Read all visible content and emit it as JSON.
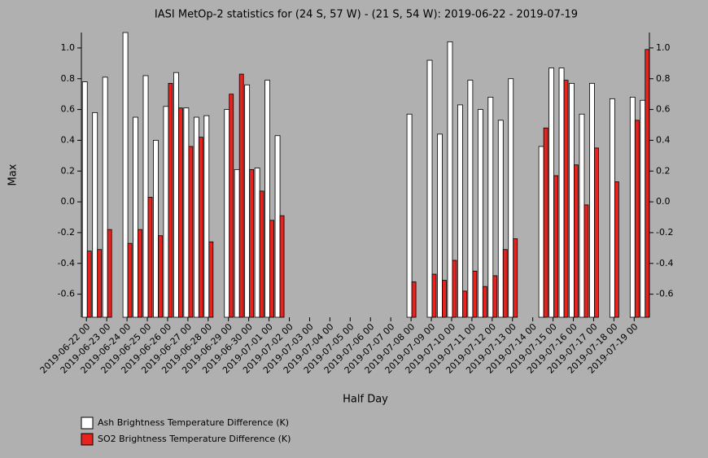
{
  "chart_data": {
    "type": "bar",
    "title": "IASI MetOp-2 statistics for (24 S, 57 W) - (21 S, 54 W): 2019-06-22 - 2019-07-19",
    "x_label": "Half Day",
    "y_label": "Max",
    "categories": [
      "2019-06-22 00",
      null,
      "2019-06-23 00",
      null,
      "2019-06-24 00",
      null,
      "2019-06-25 00",
      null,
      "2019-06-26 00",
      null,
      "2019-06-27 00",
      null,
      "2019-06-28 00",
      null,
      "2019-06-29 00",
      null,
      "2019-06-30 00",
      null,
      "2019-07-01 00",
      null,
      "2019-07-02 00",
      null,
      "2019-07-03 00",
      null,
      "2019-07-04 00",
      null,
      "2019-07-05 00",
      null,
      "2019-07-06 00",
      null,
      "2019-07-07 00",
      null,
      "2019-07-08 00",
      null,
      "2019-07-09 00",
      null,
      "2019-07-10 00",
      null,
      "2019-07-11 00",
      null,
      "2019-07-12 00",
      null,
      "2019-07-13 00",
      null,
      "2019-07-14 00",
      null,
      "2019-07-15 00",
      null,
      "2019-07-16 00",
      null,
      "2019-07-17 00",
      null,
      "2019-07-18 00",
      null,
      "2019-07-19 00",
      null
    ],
    "series": [
      {
        "name": "Ash Brightness Temperature Difference (K)",
        "color": "#ffffff",
        "values": [
          0.78,
          0.58,
          0.81,
          null,
          1.1,
          0.55,
          0.82,
          0.4,
          0.62,
          0.84,
          0.61,
          0.55,
          0.56,
          null,
          0.6,
          0.21,
          0.76,
          0.22,
          0.79,
          0.43,
          null,
          null,
          null,
          null,
          null,
          null,
          null,
          null,
          null,
          null,
          null,
          null,
          0.57,
          null,
          0.92,
          0.44,
          1.04,
          0.63,
          0.79,
          0.6,
          0.68,
          0.53,
          0.8,
          null,
          null,
          0.36,
          0.87,
          0.87,
          0.77,
          0.57,
          0.77,
          null,
          0.67,
          null,
          0.68,
          0.66
        ]
      },
      {
        "name": "SO2 Brightness Temperature Difference (K)",
        "color": "#e8231e",
        "values": [
          -0.32,
          -0.31,
          -0.18,
          null,
          -0.27,
          -0.18,
          0.03,
          -0.22,
          0.77,
          0.61,
          0.36,
          0.42,
          -0.26,
          null,
          0.7,
          0.83,
          0.21,
          0.07,
          -0.12,
          -0.09,
          null,
          null,
          null,
          null,
          null,
          null,
          null,
          null,
          null,
          null,
          null,
          null,
          -0.52,
          null,
          -0.47,
          -0.51,
          -0.38,
          -0.58,
          -0.45,
          -0.55,
          -0.48,
          -0.31,
          -0.24,
          null,
          null,
          0.48,
          0.17,
          0.79,
          0.24,
          -0.02,
          0.35,
          null,
          0.13,
          null,
          0.53,
          0.99
        ]
      }
    ],
    "ylim": [
      -0.75,
      1.1
    ],
    "yticks": [
      -0.6,
      -0.4,
      -0.2,
      {
        "value": 0,
        "label": "0.0"
      },
      0.2,
      0.4,
      0.6,
      0.8,
      {
        "value": 1,
        "label": "1.0"
      }
    ]
  }
}
